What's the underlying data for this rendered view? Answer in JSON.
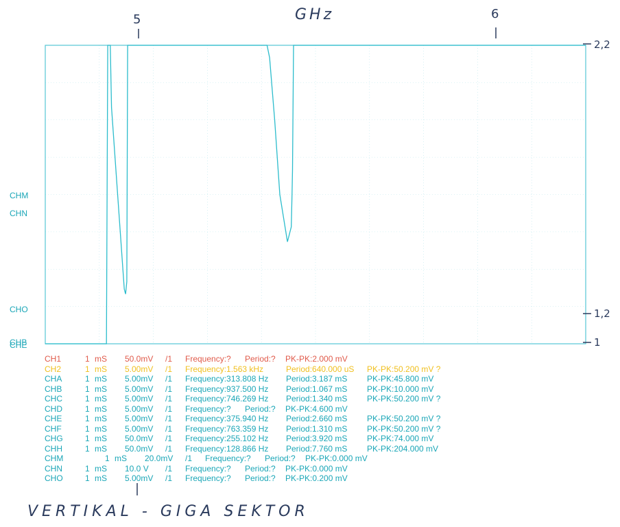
{
  "header": {
    "unit_note": "GHz",
    "marker_5": "5",
    "marker_6": "6"
  },
  "scale": {
    "top": "2,2",
    "mid": "1,2",
    "bottom": "1"
  },
  "colors": {
    "trace": "#2bbccc",
    "grid": "#b8e6ec",
    "border": "#54c6d4",
    "ch1": "#e05a4a",
    "ch2": "#f0c020",
    "default": "#1aa6b7"
  },
  "chart_data": {
    "type": "line",
    "title": "GHz",
    "x": [
      0,
      3,
      10,
      20,
      24,
      24.5,
      25.5,
      26,
      31,
      31.5,
      32,
      32.3,
      32.8,
      33,
      37,
      42,
      45,
      49,
      53,
      59,
      64,
      70,
      75,
      83,
      87,
      88,
      90,
      92,
      95,
      96.5,
      96.8,
      97,
      97.4,
      100,
      100.5,
      101,
      101.2,
      101.5,
      108,
      113,
      117,
      122,
      126,
      126.5,
      127,
      128,
      130,
      131,
      131.5,
      133,
      135,
      138,
      140,
      140.3,
      141,
      141.3,
      141.6,
      142,
      145,
      146,
      148,
      150,
      151,
      152,
      153,
      154,
      156,
      160,
      163,
      163.3,
      163.6,
      164,
      165,
      166,
      169,
      173,
      174,
      175,
      178,
      180,
      180.5,
      181,
      182,
      182.5,
      183,
      183.5,
      184,
      185,
      186,
      186.5,
      187,
      188,
      190,
      191,
      191.5,
      192,
      195,
      200,
      205,
      210,
      212
    ],
    "y": [
      1.0,
      1.0,
      1.0,
      1.0,
      1.0,
      2.2,
      2.2,
      1.95,
      1.22,
      1.2,
      1.25,
      2.2,
      2.2,
      2.2,
      2.2,
      2.2,
      2.2,
      2.2,
      2.2,
      2.2,
      2.2,
      2.2,
      2.2,
      2.2,
      2.2,
      2.15,
      1.9,
      1.6,
      1.41,
      1.47,
      1.6,
      1.7,
      2.2,
      2.2,
      2.2,
      2.2,
      2.2,
      2.2,
      2.2,
      2.2,
      2.2,
      2.2,
      2.2,
      2.2,
      2.2,
      2.2,
      2.2,
      2.2,
      2.2,
      2.2,
      2.2,
      2.2,
      2.2,
      2.2,
      2.2,
      2.2,
      2.2,
      2.2,
      2.2,
      2.2,
      2.2,
      2.2,
      2.2,
      2.2,
      2.2,
      2.2,
      2.2,
      2.2,
      2.2,
      2.2,
      2.2,
      2.2,
      2.2,
      2.2,
      2.2,
      2.2,
      2.2,
      2.2,
      2.2,
      2.2,
      2.2,
      2.2,
      2.2,
      2.2,
      2.2,
      2.2,
      2.2,
      2.2,
      2.2,
      2.2,
      2.2,
      2.2,
      2.2,
      2.2,
      2.2,
      2.2,
      2.2,
      2.2,
      2.2,
      2.2,
      2.2
    ],
    "ylim": [
      1.0,
      2.2
    ],
    "grid": true
  },
  "trace_markers": [
    "CHM",
    "CHN",
    "CHO",
    "CHB",
    "CHE"
  ],
  "readout": [
    {
      "ch": "CH1",
      "tb": "1",
      "tbu": "mS",
      "vd": "50.0mV",
      "probe": "/1",
      "freq": "Frequency:?",
      "period": "Period:?",
      "pk": "PK-PK:2.000 mV",
      "color": "#e05a4a",
      "layout": "short"
    },
    {
      "ch": "CH2",
      "tb": "1",
      "tbu": "mS",
      "vd": "5.00mV",
      "probe": "/1",
      "freq": "Frequency:1.563 kHz",
      "period": "Period:640.000 uS",
      "pk": "PK-PK:50.200 mV ?",
      "color": "#f0c020",
      "layout": "long"
    },
    {
      "ch": "CHA",
      "tb": "1",
      "tbu": "mS",
      "vd": "5.00mV",
      "probe": "/1",
      "freq": "Frequency:313.808 Hz",
      "period": "Period:3.187 mS",
      "pk": "PK-PK:45.800 mV",
      "color": "#1aa6b7",
      "layout": "long"
    },
    {
      "ch": "CHB",
      "tb": "1",
      "tbu": "mS",
      "vd": "5.00mV",
      "probe": "/1",
      "freq": "Frequency:937.500 Hz",
      "period": "Period:1.067 mS",
      "pk": "PK-PK:10.000 mV",
      "color": "#1aa6b7",
      "layout": "long"
    },
    {
      "ch": "CHC",
      "tb": "1",
      "tbu": "mS",
      "vd": "5.00mV",
      "probe": "/1",
      "freq": "Frequency:746.269 Hz",
      "period": "Period:1.340 mS",
      "pk": "PK-PK:50.200 mV ?",
      "color": "#1aa6b7",
      "layout": "long"
    },
    {
      "ch": "CHD",
      "tb": "1",
      "tbu": "mS",
      "vd": "5.00mV",
      "probe": "/1",
      "freq": "Frequency:?",
      "period": "Period:?",
      "pk": "PK-PK:4.600 mV",
      "color": "#1aa6b7",
      "layout": "short"
    },
    {
      "ch": "CHE",
      "tb": "1",
      "tbu": "mS",
      "vd": "5.00mV",
      "probe": "/1",
      "freq": "Frequency:375.940 Hz",
      "period": "Period:2.660 mS",
      "pk": "PK-PK:50.200 mV ?",
      "color": "#1aa6b7",
      "layout": "long"
    },
    {
      "ch": "CHF",
      "tb": "1",
      "tbu": "mS",
      "vd": "5.00mV",
      "probe": "/1",
      "freq": "Frequency:763.359 Hz",
      "period": "Period:1.310 mS",
      "pk": "PK-PK:50.200 mV ?",
      "color": "#1aa6b7",
      "layout": "long"
    },
    {
      "ch": "CHG",
      "tb": "1",
      "tbu": "mS",
      "vd": "50.0mV",
      "probe": "/1",
      "freq": "Frequency:255.102 Hz",
      "period": "Period:3.920 mS",
      "pk": "PK-PK:74.000 mV",
      "color": "#1aa6b7",
      "layout": "long"
    },
    {
      "ch": "CHH",
      "tb": "1",
      "tbu": "mS",
      "vd": "50.0mV",
      "probe": "/1",
      "freq": "Frequency:128.866 Hz",
      "period": "Period:7.760 mS",
      "pk": "PK-PK:204.000 mV",
      "color": "#1aa6b7",
      "layout": "long"
    },
    {
      "ch": "CHM",
      "tb": "1",
      "tbu": "mS",
      "vd": "20.0mV",
      "probe": "/1",
      "freq": "Frequency:?",
      "period": "Period:?",
      "pk": "PK-PK:0.000 mV",
      "color": "#1aa6b7",
      "layout": "shifted"
    },
    {
      "ch": "CHN",
      "tb": "1",
      "tbu": "mS",
      "vd": "10.0 V",
      "probe": "/1",
      "freq": "Frequency:?",
      "period": "Period:?",
      "pk": "PK-PK:0.000 mV",
      "color": "#1aa6b7",
      "layout": "short"
    },
    {
      "ch": "CHO",
      "tb": "1",
      "tbu": "mS",
      "vd": "5.00mV",
      "probe": "/1",
      "freq": "Frequency:?",
      "period": "Period:?",
      "pk": "PK-PK:0.200 mV",
      "color": "#1aa6b7",
      "layout": "short"
    }
  ],
  "footer_note": "VERTIKAL - GIGA SEKTOR"
}
